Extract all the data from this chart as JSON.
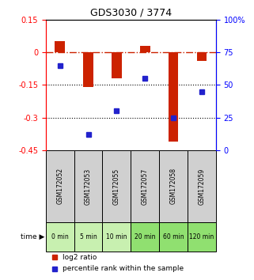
{
  "title": "GDS3030 / 3774",
  "samples": [
    "GSM172052",
    "GSM172053",
    "GSM172055",
    "GSM172057",
    "GSM172058",
    "GSM172059"
  ],
  "time_labels": [
    "0 min",
    "5 min",
    "10 min",
    "20 min",
    "60 min",
    "120 min"
  ],
  "log2_ratio": [
    0.05,
    -0.16,
    -0.12,
    0.03,
    -0.41,
    -0.04
  ],
  "percentile_rank": [
    65,
    12,
    30,
    55,
    25,
    45
  ],
  "ylim_left": [
    -0.45,
    0.15
  ],
  "ylim_right": [
    0,
    100
  ],
  "yticks_left": [
    0.15,
    0,
    -0.15,
    -0.3,
    -0.45
  ],
  "yticks_right": [
    100,
    75,
    50,
    25,
    0
  ],
  "hlines": [
    -0.15,
    -0.3
  ],
  "bar_color": "#cc2200",
  "dot_color": "#2222cc",
  "dashed_color": "#cc2200",
  "background_color": "#ffffff",
  "grid_bg": "#f0f0f0",
  "sample_box_color": "#d0d0d0",
  "time_box_colors": [
    "#c8f0b0",
    "#c8f0b0",
    "#c8f0b0",
    "#90e070",
    "#90e070",
    "#90e070"
  ],
  "legend_red_label": "log2 ratio",
  "legend_blue_label": "percentile rank within the sample"
}
